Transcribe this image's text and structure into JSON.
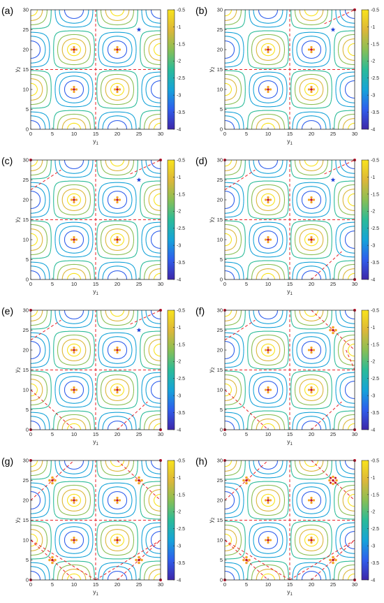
{
  "chart_data": {
    "type": "contour",
    "shared": {
      "xlabel_main": "y",
      "xlabel_sub": "1",
      "ylabel_main": "y",
      "ylabel_sub": "2",
      "xlim": [
        0,
        30
      ],
      "ylim": [
        0,
        30
      ],
      "xticks": [
        "0",
        "5",
        "10",
        "15",
        "20",
        "25",
        "30"
      ],
      "yticks": [
        "0",
        "5",
        "10",
        "15",
        "20",
        "25",
        "30"
      ],
      "colorbar_ticks": [
        "-0.5",
        "-1",
        "-1.5",
        "-2",
        "-2.5",
        "-3",
        "-3.5",
        "-4"
      ],
      "colorbar_values": [
        -0.5,
        -1,
        -1.5,
        -2,
        -2.5,
        -3,
        -3.5,
        -4
      ],
      "colorbar_range": [
        -4,
        -0.5
      ],
      "contour_levels": [
        -3.6,
        -3.1,
        -2.6,
        -2.1,
        -1.6,
        -1.1,
        -0.7
      ],
      "colormap": [
        "#3e26a8",
        "#2f5fec",
        "#16a3d9",
        "#2bbb98",
        "#8bbf54",
        "#dcb73a",
        "#f9e31c"
      ],
      "dashed_line_color": "#e8232a",
      "marker_color_orange": "#f5a623",
      "marker_color_red": "#c0122b",
      "marker_color_blue": "#1c3fd8"
    },
    "panels": [
      {
        "label": "(a)",
        "star": [
          25,
          25
        ],
        "dashed_lines": [
          [
            [
              0,
              15
            ],
            [
              30,
              15
            ]
          ],
          [
            [
              15,
              0
            ],
            [
              15,
              30
            ]
          ]
        ],
        "clusters": [
          [
            25,
            25,
            "star"
          ]
        ],
        "corner_dots": []
      },
      {
        "label": "(b)",
        "star": [
          25,
          25
        ],
        "dashed_lines": [
          [
            [
              0,
              15
            ],
            [
              30,
              15
            ]
          ],
          [
            [
              15,
              0
            ],
            [
              15,
              30
            ]
          ],
          [
            [
              23,
              26.5
            ],
            [
              30,
              30
            ]
          ]
        ],
        "clusters": [
          [
            25,
            25,
            "star"
          ]
        ],
        "corner_dots": [
          [
            30,
            30
          ]
        ]
      },
      {
        "label": "(c)",
        "star": [
          25,
          25
        ],
        "dashed_lines": [
          [
            [
              0,
              15
            ],
            [
              30,
              15
            ]
          ],
          [
            [
              15,
              0
            ],
            [
              15,
              30
            ]
          ],
          [
            [
              0,
              22.5
            ],
            [
              7,
              27.5
            ]
          ],
          [
            [
              23,
              26.5
            ],
            [
              30,
              30
            ]
          ]
        ],
        "clusters": [
          [
            25,
            25,
            "star"
          ]
        ],
        "corner_dots": [
          [
            0,
            30
          ],
          [
            30,
            30
          ]
        ]
      },
      {
        "label": "(d)",
        "star": [
          25,
          25
        ],
        "dashed_lines": [
          [
            [
              0,
              15
            ],
            [
              30,
              15
            ]
          ],
          [
            [
              15,
              0
            ],
            [
              15,
              30
            ]
          ],
          [
            [
              0,
              22.5
            ],
            [
              7,
              27.5
            ]
          ],
          [
            [
              23,
              26.5
            ],
            [
              30,
              30
            ]
          ],
          [
            [
              20,
              0
            ],
            [
              27,
              7
            ]
          ]
        ],
        "clusters": [
          [
            25,
            25,
            "star"
          ]
        ],
        "corner_dots": [
          [
            0,
            30
          ],
          [
            30,
            30
          ],
          [
            30,
            0
          ]
        ]
      },
      {
        "label": "(e)",
        "star": [
          25,
          25
        ],
        "dashed_lines": [
          [
            [
              0,
              15
            ],
            [
              30,
              15
            ]
          ],
          [
            [
              15,
              0
            ],
            [
              15,
              30
            ]
          ],
          [
            [
              0,
              22.5
            ],
            [
              7,
              27.5
            ]
          ],
          [
            [
              23,
              26.5
            ],
            [
              30,
              30
            ]
          ],
          [
            [
              20,
              0
            ],
            [
              27,
              7
            ]
          ],
          [
            [
              0,
              10
            ],
            [
              10,
              0
            ]
          ]
        ],
        "clusters": [
          [
            25,
            25,
            "star"
          ]
        ],
        "corner_dots": [
          [
            0,
            30
          ],
          [
            30,
            30
          ],
          [
            30,
            0
          ],
          [
            0,
            0
          ]
        ]
      },
      {
        "label": "(f)",
        "star": [
          25,
          25
        ],
        "dashed_lines": [
          [
            [
              0,
              15
            ],
            [
              30,
              15
            ]
          ],
          [
            [
              15,
              0
            ],
            [
              15,
              30
            ]
          ],
          [
            [
              0,
              22.5
            ],
            [
              7,
              27.5
            ]
          ],
          [
            [
              20,
              0
            ],
            [
              27,
              7
            ]
          ],
          [
            [
              0,
              10
            ],
            [
              10,
              0
            ]
          ],
          [
            [
              20,
              30
            ],
            [
              30,
              20
            ]
          ],
          [
            [
              28,
              20
            ],
            [
              30,
              15
            ]
          ]
        ],
        "clusters": [
          [
            25,
            25,
            "plus"
          ]
        ],
        "corner_dots": [
          [
            0,
            30
          ],
          [
            30,
            30
          ],
          [
            30,
            0
          ],
          [
            0,
            0
          ]
        ]
      },
      {
        "label": "(g)",
        "star": [
          25,
          25
        ],
        "dashed_lines": [
          [
            [
              0,
              15
            ],
            [
              30,
              15
            ]
          ],
          [
            [
              15,
              0
            ],
            [
              15,
              30
            ]
          ],
          [
            [
              0,
              20
            ],
            [
              10,
              30
            ]
          ],
          [
            [
              20,
              30
            ],
            [
              30,
              20
            ]
          ],
          [
            [
              0,
              10
            ],
            [
              10,
              0
            ]
          ],
          [
            [
              20,
              0
            ],
            [
              30,
              10
            ]
          ],
          [
            [
              0,
              10
            ],
            [
              15,
              0
            ]
          ],
          [
            [
              15,
              0
            ],
            [
              30,
              10
            ]
          ]
        ],
        "clusters": [
          [
            25,
            25,
            "plus"
          ],
          [
            5,
            25,
            "plus"
          ],
          [
            5,
            5,
            "plus"
          ],
          [
            25,
            5,
            "plus"
          ]
        ],
        "corner_dots": [
          [
            0,
            30
          ],
          [
            30,
            30
          ],
          [
            30,
            0
          ],
          [
            0,
            0
          ]
        ]
      },
      {
        "label": "(h)",
        "star": [
          25,
          25
        ],
        "dashed_lines": [
          [
            [
              0,
              15
            ],
            [
              30,
              15
            ]
          ],
          [
            [
              15,
              0
            ],
            [
              15,
              30
            ]
          ],
          [
            [
              0,
              20
            ],
            [
              10,
              30
            ]
          ],
          [
            [
              20,
              30
            ],
            [
              30,
              20
            ]
          ],
          [
            [
              0,
              10
            ],
            [
              10,
              0
            ]
          ],
          [
            [
              20,
              0
            ],
            [
              30,
              10
            ]
          ],
          [
            [
              0,
              10
            ],
            [
              15,
              0
            ]
          ],
          [
            [
              15,
              0
            ],
            [
              30,
              10
            ]
          ]
        ],
        "clusters": [
          [
            25,
            25,
            "ring"
          ],
          [
            5,
            25,
            "plus"
          ],
          [
            5,
            5,
            "plus"
          ],
          [
            25,
            5,
            "plus"
          ]
        ],
        "corner_dots": [
          [
            0,
            30
          ],
          [
            30,
            30
          ],
          [
            30,
            0
          ],
          [
            0,
            0
          ]
        ]
      }
    ]
  }
}
